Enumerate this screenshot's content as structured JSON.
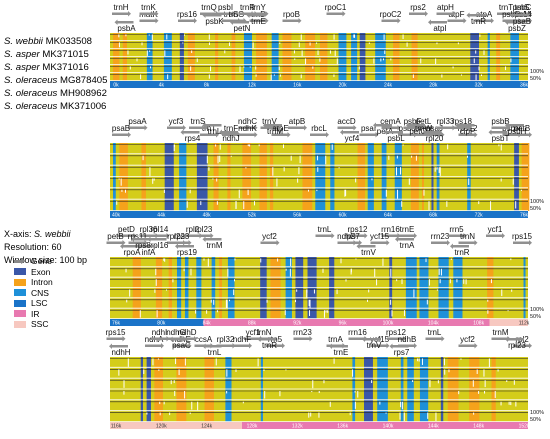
{
  "species": [
    {
      "epithet": "S. webbii",
      "accession": "MK033508"
    },
    {
      "epithet": "S. asper",
      "accession": "MK371015"
    },
    {
      "epithet": "S. asper",
      "accession": "MK371016"
    },
    {
      "epithet": "S. oleraceus",
      "accession": "MG878405"
    },
    {
      "epithet": "S. oleraceus",
      "accession": "MH908962"
    },
    {
      "epithet": "S. oleraceus",
      "accession": "MK371006"
    }
  ],
  "info": {
    "xaxis_prefix": "X-axis: ",
    "xaxis_ref": "S. webbii",
    "resolution": "Resolution: 60",
    "window": "Window size: 100 bp"
  },
  "legend": [
    {
      "label": "Gene",
      "color": "#888888",
      "kind": "arrow"
    },
    {
      "label": "Exon",
      "color": "#3a57a8",
      "kind": "box"
    },
    {
      "label": "Intron",
      "color": "#f5a21b",
      "kind": "box"
    },
    {
      "label": "CNS",
      "color": "#1e90d8",
      "kind": "box"
    },
    {
      "label": "LSC",
      "color": "#1a73c8",
      "kind": "box"
    },
    {
      "label": "IR",
      "color": "#e879b0",
      "kind": "box"
    },
    {
      "label": "SSC",
      "color": "#f7c8c0",
      "kind": "box"
    }
  ],
  "colors": {
    "conserved": "#d4cd1a",
    "exon": "#3a57a8",
    "intron": "#f5a21b",
    "cns": "#1e90d8",
    "lsc": "#1a73c8",
    "ir": "#e879b0",
    "ssc": "#f7c8c0",
    "gene": "#909090"
  },
  "pct_top": "100%",
  "pct_bottom": "50%",
  "panels": [
    {
      "start_kb": 0,
      "end_kb": 38,
      "ticks": [
        "0k",
        "4k",
        "8k",
        "12k",
        "16k",
        "20k",
        "24k",
        "28k",
        "32k",
        "36k"
      ],
      "segments": [
        {
          "region": "lsc",
          "from": 0,
          "to": 38
        }
      ],
      "genes_top": [
        {
          "name": "trnH",
          "kb": 1
        },
        {
          "name": "matK",
          "kb": 3.5
        },
        {
          "name": "trnK",
          "kb": 3.5
        },
        {
          "name": "rps16",
          "kb": 7
        },
        {
          "name": "trnQ",
          "kb": 9
        },
        {
          "name": "trnS",
          "kb": 11
        },
        {
          "name": "psbI",
          "kb": 10.5
        },
        {
          "name": "trnG",
          "kb": 11.5
        },
        {
          "name": "trnR",
          "kb": 12.5
        },
        {
          "name": "trnD",
          "kb": 13.5
        },
        {
          "name": "trnY",
          "kb": 13.5
        },
        {
          "name": "rpoB",
          "kb": 16.5
        },
        {
          "name": "rpoC1",
          "kb": 20.5
        },
        {
          "name": "rpoC2",
          "kb": 25.5
        },
        {
          "name": "rps2",
          "kb": 28
        },
        {
          "name": "atpF",
          "kb": 31.5
        },
        {
          "name": "atpH",
          "kb": 30.5
        },
        {
          "name": "atpA",
          "kb": 34
        },
        {
          "name": "trnT",
          "kb": 36
        },
        {
          "name": "psbD",
          "kb": 36.5
        },
        {
          "name": "psbC",
          "kb": 37.5
        },
        {
          "name": "trnM",
          "kb": 38.5
        },
        {
          "name": "trnS",
          "kb": 37.5
        },
        {
          "name": "rps14",
          "kb": 38.5
        }
      ],
      "genes_bottom": [
        {
          "name": "psbA",
          "kb": 1.5
        },
        {
          "name": "psbK",
          "kb": 9.5
        },
        {
          "name": "petN",
          "kb": 12
        },
        {
          "name": "trnE",
          "kb": 13.5
        },
        {
          "name": "atpI",
          "kb": 30
        },
        {
          "name": "trnR",
          "kb": 33.5
        },
        {
          "name": "psbZ",
          "kb": 37
        },
        {
          "name": "psaB",
          "kb": 38.5
        }
      ]
    },
    {
      "start_kb": 38,
      "end_kb": 76,
      "ticks": [
        "40k",
        "44k",
        "48k",
        "52k",
        "56k",
        "60k",
        "64k",
        "68k",
        "72k",
        "76k"
      ],
      "segments": [
        {
          "region": "lsc",
          "from": 38,
          "to": 76
        }
      ],
      "genes_top": [
        {
          "name": "psaA",
          "kb": 40.5
        },
        {
          "name": "psaB",
          "kb": 39
        },
        {
          "name": "ycf3",
          "kb": 44
        },
        {
          "name": "trnT",
          "kb": 47
        },
        {
          "name": "trnS",
          "kb": 46
        },
        {
          "name": "trnF",
          "kb": 49
        },
        {
          "name": "ndhC",
          "kb": 50.5
        },
        {
          "name": "ndhK",
          "kb": 50.5
        },
        {
          "name": "trnV",
          "kb": 52.5
        },
        {
          "name": "atpE",
          "kb": 53.5
        },
        {
          "name": "atpB",
          "kb": 55
        },
        {
          "name": "rbcL",
          "kb": 57
        },
        {
          "name": "accD",
          "kb": 59.5
        },
        {
          "name": "psaI",
          "kb": 61.5
        },
        {
          "name": "cemA",
          "kb": 63.5
        },
        {
          "name": "psbJ",
          "kb": 65
        },
        {
          "name": "petL",
          "kb": 66.5
        },
        {
          "name": "psaJ",
          "kb": 67.5
        },
        {
          "name": "psbF",
          "kb": 65.5
        },
        {
          "name": "trnW",
          "kb": 66.5
        },
        {
          "name": "rpl33",
          "kb": 68.5
        },
        {
          "name": "rps12",
          "kb": 70.5
        },
        {
          "name": "rps18",
          "kb": 70
        },
        {
          "name": "psbN",
          "kb": 74.5
        },
        {
          "name": "psbB",
          "kb": 73.5
        },
        {
          "name": "petB",
          "kb": 75.5
        }
      ],
      "genes_bottom": [
        {
          "name": "rps4",
          "kb": 45.5
        },
        {
          "name": "trnL",
          "kb": 47.5
        },
        {
          "name": "ndhJ",
          "kb": 49
        },
        {
          "name": "trnM",
          "kb": 53
        },
        {
          "name": "ycf4",
          "kb": 60
        },
        {
          "name": "petA",
          "kb": 63
        },
        {
          "name": "psbL",
          "kb": 64
        },
        {
          "name": "petG",
          "kb": 66
        },
        {
          "name": "rpl20",
          "kb": 67.5
        },
        {
          "name": "clpP",
          "kb": 70.5
        },
        {
          "name": "psbT",
          "kb": 73.5
        },
        {
          "name": "psbH",
          "kb": 75
        }
      ]
    },
    {
      "start_kb": 76,
      "end_kb": 114,
      "ticks": [
        "76k",
        "80k",
        "84k",
        "88k",
        "92k",
        "96k",
        "100k",
        "104k",
        "108k",
        "112k"
      ],
      "segments": [
        {
          "region": "lsc",
          "from": 76,
          "to": 84.5
        },
        {
          "region": "ir",
          "from": 84.5,
          "to": 110.5
        },
        {
          "region": "ssc",
          "from": 110.5,
          "to": 114
        }
      ],
      "genes_top": [
        {
          "name": "petD",
          "kb": 77.5
        },
        {
          "name": "petB",
          "kb": 76.5
        },
        {
          "name": "rpl36",
          "kb": 79.5
        },
        {
          "name": "rps11",
          "kb": 78.5
        },
        {
          "name": "rpl14",
          "kb": 80.5
        },
        {
          "name": "rpl22",
          "kb": 82
        },
        {
          "name": "rpl2",
          "kb": 83.5
        },
        {
          "name": "rps3",
          "kb": 82.5
        },
        {
          "name": "rpl23",
          "kb": 84.5
        },
        {
          "name": "ycf2",
          "kb": 90.5
        },
        {
          "name": "trnL",
          "kb": 95.5
        },
        {
          "name": "ndhB",
          "kb": 97.5
        },
        {
          "name": "rps12",
          "kb": 98.5
        },
        {
          "name": "rps7",
          "kb": 98
        },
        {
          "name": "rrn16",
          "kb": 101.5
        },
        {
          "name": "ycf15",
          "kb": 100.5
        },
        {
          "name": "trnE",
          "kb": 103
        },
        {
          "name": "rrn23",
          "kb": 106
        },
        {
          "name": "rrn5",
          "kb": 107.5
        },
        {
          "name": "trnN",
          "kb": 108.5
        },
        {
          "name": "ycf1",
          "kb": 111
        },
        {
          "name": "rps15",
          "kb": 113.5
        }
      ],
      "genes_bottom": [
        {
          "name": "rpoA",
          "kb": 78
        },
        {
          "name": "rpl16",
          "kb": 80.5
        },
        {
          "name": "infA",
          "kb": 79.5
        },
        {
          "name": "rps8",
          "kb": 79
        },
        {
          "name": "rps19",
          "kb": 83
        },
        {
          "name": "trnM",
          "kb": 85.5
        },
        {
          "name": "trnV",
          "kb": 99.5
        },
        {
          "name": "trnA",
          "kb": 103
        },
        {
          "name": "trnR",
          "kb": 108
        }
      ]
    },
    {
      "start_kb": 114,
      "end_kb": 152,
      "ticks": [
        "116k",
        "120k",
        "124k",
        "128k",
        "132k",
        "136k",
        "140k",
        "144k",
        "148k",
        "152k"
      ],
      "segments": [
        {
          "region": "ssc",
          "from": 114,
          "to": 126
        },
        {
          "region": "ir",
          "from": 126,
          "to": 152
        }
      ],
      "genes_top": [
        {
          "name": "rps15",
          "kb": 114.5
        },
        {
          "name": "ndhA",
          "kb": 118
        },
        {
          "name": "ndhI",
          "kb": 118.5
        },
        {
          "name": "ndhE",
          "kb": 120.5
        },
        {
          "name": "ndhG",
          "kb": 120
        },
        {
          "name": "ccsA",
          "kb": 122.5
        },
        {
          "name": "ndhD",
          "kb": 121
        },
        {
          "name": "rpl32",
          "kb": 124.5
        },
        {
          "name": "ycf1",
          "kb": 127
        },
        {
          "name": "ndhF",
          "kb": 126
        },
        {
          "name": "trnN",
          "kb": 128
        },
        {
          "name": "rrn5",
          "kb": 129
        },
        {
          "name": "rrn23",
          "kb": 131.5
        },
        {
          "name": "trnA",
          "kb": 134.5
        },
        {
          "name": "rrn16",
          "kb": 136.5
        },
        {
          "name": "ycf15",
          "kb": 138.5
        },
        {
          "name": "rps12",
          "kb": 140
        },
        {
          "name": "ndhB",
          "kb": 141
        },
        {
          "name": "trnL",
          "kb": 143.5
        },
        {
          "name": "ycf2",
          "kb": 146.5
        },
        {
          "name": "trnM",
          "kb": 149.5
        },
        {
          "name": "rpl2",
          "kb": 151.5
        }
      ],
      "genes_bottom": [
        {
          "name": "ndhH",
          "kb": 115
        },
        {
          "name": "psaC",
          "kb": 120.5
        },
        {
          "name": "trnL",
          "kb": 123.5
        },
        {
          "name": "trnR",
          "kb": 128.5
        },
        {
          "name": "trnE",
          "kb": 135
        },
        {
          "name": "trnV",
          "kb": 138
        },
        {
          "name": "rps7",
          "kb": 140.5
        },
        {
          "name": "rpl23",
          "kb": 151
        }
      ]
    }
  ]
}
